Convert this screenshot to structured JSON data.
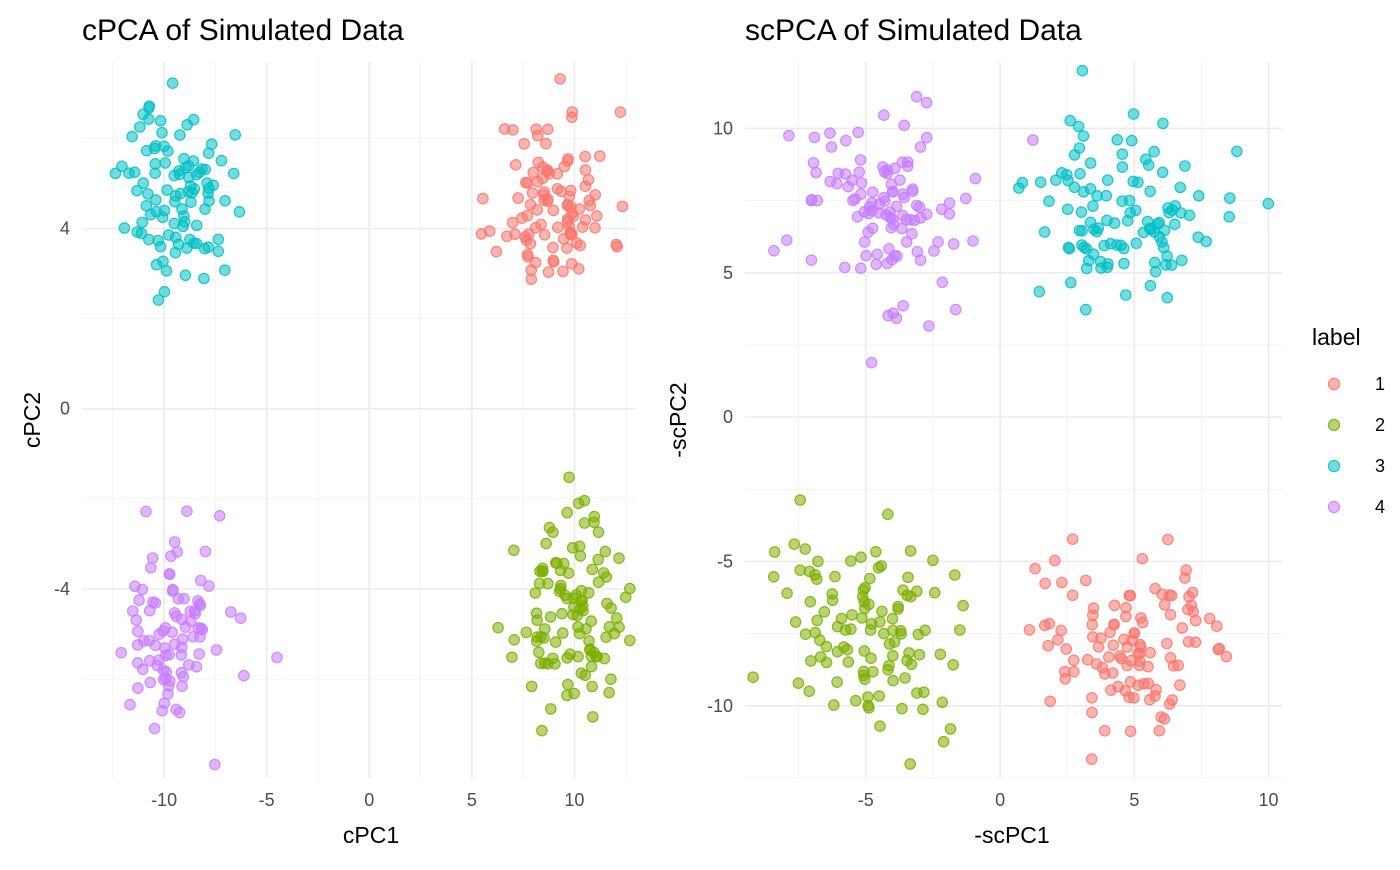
{
  "chart_data": [
    {
      "type": "scatter",
      "title": "cPCA of Simulated Data",
      "xlabel": "cPC1",
      "ylabel": "cPC2",
      "xlim": [
        -14.0,
        13.0
      ],
      "ylim": [
        -8.2,
        7.7
      ],
      "x_ticks": [
        -10,
        -5,
        0,
        5,
        10
      ],
      "y_ticks": [
        -4,
        0,
        4
      ],
      "grid": true,
      "clusters": [
        {
          "label": "1",
          "center": [
            9.0,
            4.6
          ],
          "spread": [
            1.4,
            1.0
          ],
          "n": 100,
          "seed": 11
        },
        {
          "label": "2",
          "center": [
            9.8,
            -4.6
          ],
          "spread": [
            1.3,
            1.0
          ],
          "n": 110,
          "seed": 23
        },
        {
          "label": "3",
          "center": [
            -9.3,
            4.8
          ],
          "spread": [
            1.3,
            1.0
          ],
          "n": 100,
          "seed": 37
        },
        {
          "label": "4",
          "center": [
            -9.6,
            -5.0
          ],
          "spread": [
            1.4,
            1.1
          ],
          "n": 90,
          "seed": 49
        }
      ]
    },
    {
      "type": "scatter",
      "title": "scPCA of Simulated Data",
      "xlabel": "-scPC1",
      "ylabel": "-scPC2",
      "xlim": [
        -9.5,
        10.5
      ],
      "ylim": [
        -12.5,
        12.3
      ],
      "x_ticks": [
        -5,
        0,
        5,
        10
      ],
      "y_ticks": [
        -10,
        -5,
        0,
        5,
        10
      ],
      "grid": true,
      "clusters": [
        {
          "label": "1",
          "center": [
            4.6,
            -7.6
          ],
          "spread": [
            1.9,
            1.8
          ],
          "n": 110,
          "seed": 61
        },
        {
          "label": "2",
          "center": [
            -4.6,
            -7.4
          ],
          "spread": [
            1.8,
            1.8
          ],
          "n": 110,
          "seed": 73
        },
        {
          "label": "3",
          "center": [
            4.8,
            7.2
          ],
          "spread": [
            1.9,
            1.7
          ],
          "n": 110,
          "seed": 89
        },
        {
          "label": "4",
          "center": [
            -4.6,
            7.2
          ],
          "spread": [
            1.9,
            1.8
          ],
          "n": 110,
          "seed": 97
        }
      ]
    }
  ],
  "legend": {
    "title": "label",
    "position": "right",
    "items": [
      {
        "label": "1",
        "color": "#F8766D"
      },
      {
        "label": "2",
        "color": "#7CAE00"
      },
      {
        "label": "3",
        "color": "#00BFC4"
      },
      {
        "label": "4",
        "color": "#C77CFF"
      }
    ]
  }
}
